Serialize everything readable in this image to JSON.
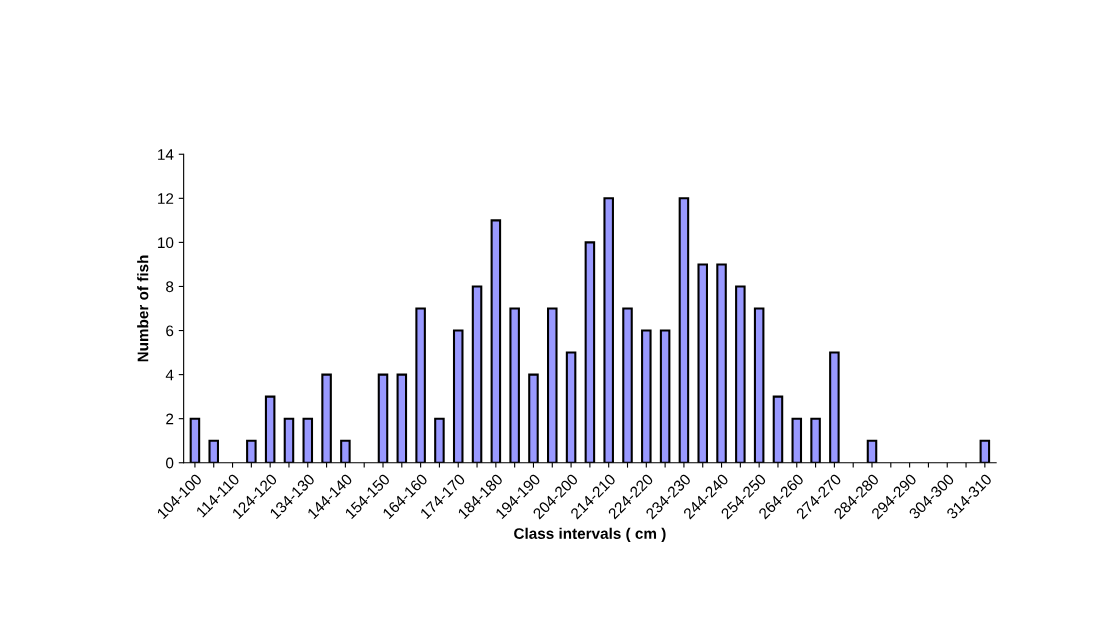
{
  "chart_data": {
    "type": "bar",
    "xlabel": "Class intervals ( cm )",
    "ylabel": "Number of fish",
    "categories": [
      "104-100",
      null,
      "114-110",
      null,
      "124-120",
      null,
      "134-130",
      null,
      "144-140",
      null,
      "154-150",
      null,
      "164-160",
      null,
      "174-170",
      null,
      "184-180",
      null,
      "194-190",
      null,
      "204-200",
      null,
      "214-210",
      null,
      "224-220",
      null,
      "234-230",
      null,
      "244-240",
      null,
      "254-250",
      null,
      "264-260",
      null,
      "274-270",
      null,
      "284-280",
      null,
      "294-290",
      null,
      "304-300",
      null,
      "314-310"
    ],
    "values": [
      2,
      1,
      0,
      1,
      3,
      2,
      2,
      4,
      1,
      0,
      4,
      4,
      7,
      2,
      6,
      8,
      11,
      7,
      4,
      7,
      5,
      10,
      12,
      7,
      6,
      6,
      12,
      9,
      9,
      8,
      7,
      3,
      2,
      2,
      5,
      0,
      1,
      0,
      0,
      0,
      0,
      0,
      1
    ],
    "color": "#9999ff",
    "ylim": [
      0,
      14
    ],
    "yticks": [
      0,
      2,
      4,
      6,
      8,
      10,
      12,
      14
    ],
    "grid": false,
    "legend": false
  }
}
